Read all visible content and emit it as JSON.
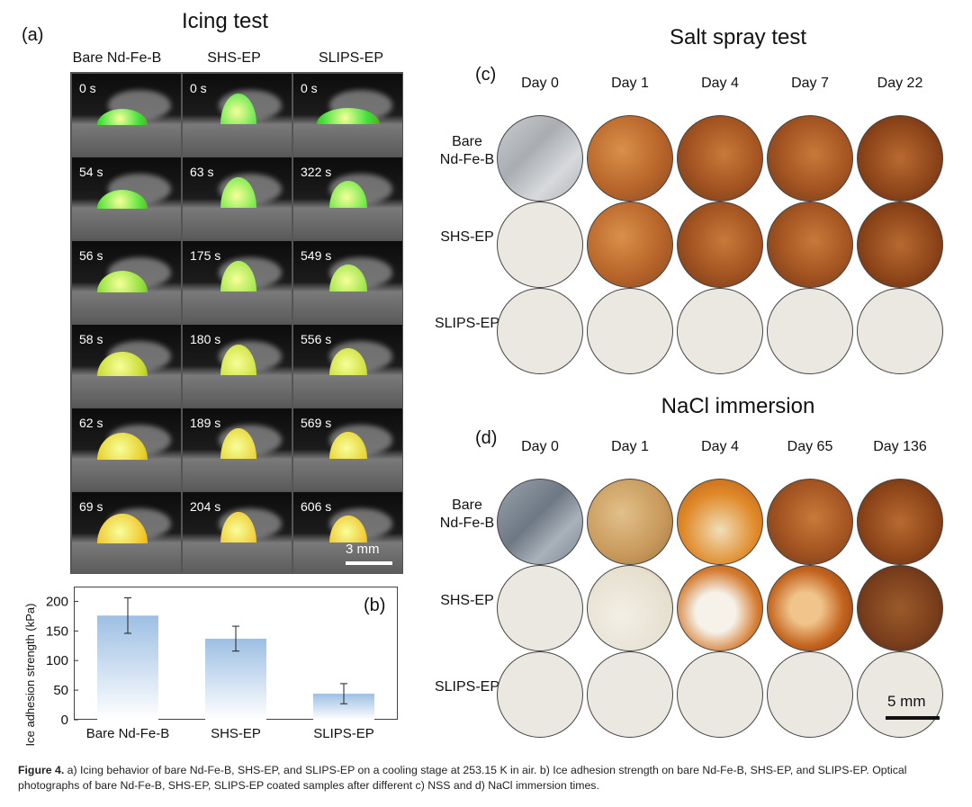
{
  "figure": {
    "panel_a": {
      "label": "(a)",
      "title": "Icing test",
      "columns": [
        "Bare Nd-Fe-B",
        "SHS-EP",
        "SLIPS-EP"
      ],
      "times": [
        [
          "0 s",
          "0 s",
          "0 s"
        ],
        [
          "54 s",
          "63 s",
          "322 s"
        ],
        [
          "56 s",
          "175 s",
          "549 s"
        ],
        [
          "58 s",
          "180 s",
          "556 s"
        ],
        [
          "62 s",
          "189 s",
          "569 s"
        ],
        [
          "69 s",
          "204 s",
          "606 s"
        ]
      ],
      "scale_bar": "3 mm"
    },
    "panel_b": {
      "label": "(b)"
    },
    "panel_c": {
      "label": "(c)",
      "title": "Salt spray test",
      "days": [
        "Day 0",
        "Day 1",
        "Day 4",
        "Day 7",
        "Day 22"
      ],
      "rows": [
        "Bare Nd-Fe-B",
        "SHS-EP",
        "SLIPS-EP"
      ]
    },
    "panel_d": {
      "label": "(d)",
      "title": "NaCl immersion",
      "days": [
        "Day 0",
        "Day 1",
        "Day 4",
        "Day 65",
        "Day 136"
      ],
      "rows": [
        "Bare Nd-Fe-B",
        "SHS-EP",
        "SLIPS-EP"
      ],
      "scale_bar": "5 mm"
    },
    "caption_lead": "Figure 4.",
    "caption_text": " a) Icing behavior of bare Nd-Fe-B, SHS-EP, and SLIPS-EP on a cooling stage at 253.15 K in air. b) Ice adhesion strength on bare Nd-Fe-B, SHS-EP, and SLIPS-EP. Optical photographs of bare Nd-Fe-B, SHS-EP, SLIPS-EP coated samples after different c) NSS and d) NaCl immersion times."
  },
  "chart_data": {
    "type": "bar",
    "categories": [
      "Bare Nd-Fe-B",
      "SHS-EP",
      "SLIPS-EP"
    ],
    "values": [
      176,
      137,
      44
    ],
    "errors": [
      30,
      21,
      17
    ],
    "ylabel": "Ice adhesion strength (kPa)",
    "ylim": [
      0,
      225
    ],
    "yticks": [
      0,
      50,
      100,
      150,
      200
    ],
    "bar_color": "#9dbfe3"
  }
}
